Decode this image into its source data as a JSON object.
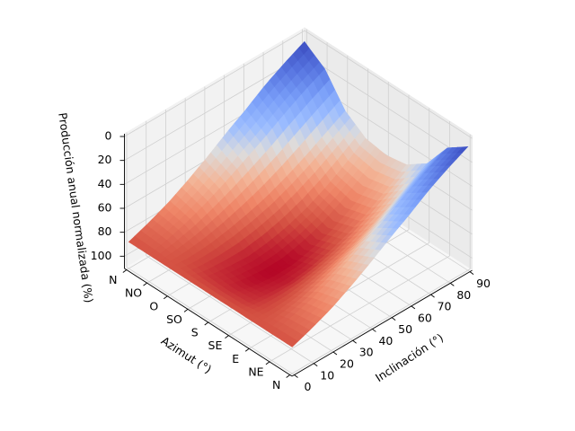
{
  "chart_data": {
    "type": "surface3d",
    "colormap": "coolwarm",
    "z_inverted": true,
    "xlabel": "Inclinación (°)",
    "ylabel": "Azimut (°)",
    "zlabel": "Producción anual normalizada (%)",
    "x_ticks": [
      "0",
      "10",
      "20",
      "30",
      "40",
      "50",
      "60",
      "70",
      "80",
      "90"
    ],
    "x_range": [
      0,
      90
    ],
    "y_ticks": [
      "N",
      "NE",
      "E",
      "SE",
      "S",
      "SO",
      "O",
      "NO",
      "N"
    ],
    "y_range": [
      0,
      360
    ],
    "z_ticks": [
      "0",
      "20",
      "40",
      "60",
      "80",
      "100"
    ],
    "z_range": [
      0,
      108
    ],
    "grid": true,
    "optimum": {
      "inclinacion": 35,
      "azimut": 180,
      "produccion": 100
    },
    "grid_samples": {
      "inclinacion": [
        0,
        10,
        20,
        30,
        40,
        50,
        60,
        70,
        80,
        90
      ],
      "azimut": [
        0,
        45,
        90,
        135,
        180,
        225,
        270,
        315,
        360
      ],
      "produccion": [
        [
          88,
          88,
          88,
          88,
          88,
          88,
          88,
          88,
          88
        ],
        [
          82,
          84,
          89,
          93,
          94,
          93,
          89,
          84,
          82
        ],
        [
          75,
          79,
          88,
          95,
          98,
          95,
          88,
          79,
          75
        ],
        [
          66,
          72,
          85,
          96,
          100,
          96,
          85,
          72,
          66
        ],
        [
          56,
          64,
          81,
          94,
          100,
          94,
          81,
          64,
          56
        ],
        [
          45,
          55,
          76,
          90,
          96,
          90,
          76,
          55,
          45
        ],
        [
          35,
          46,
          69,
          84,
          90,
          84,
          69,
          46,
          35
        ],
        [
          24,
          36,
          61,
          76,
          81,
          76,
          61,
          36,
          24
        ],
        [
          15,
          27,
          52,
          66,
          70,
          66,
          52,
          27,
          15
        ],
        [
          7,
          19,
          43,
          55,
          58,
          55,
          43,
          19,
          7
        ]
      ]
    }
  }
}
